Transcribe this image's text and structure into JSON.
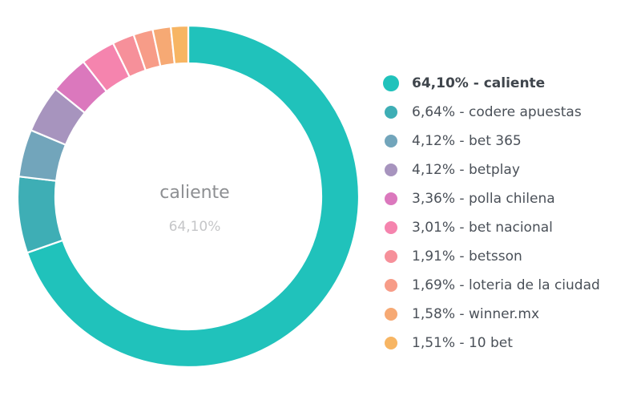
{
  "chart_data": {
    "type": "pie",
    "variant": "donut",
    "title": "",
    "legend_position": "right",
    "center_label": {
      "name": "caliente",
      "value": "64,10%"
    },
    "slices": [
      {
        "label": "caliente",
        "value": 64.1,
        "display": "64,10%",
        "color": "#20c2bb"
      },
      {
        "label": "codere apuestas",
        "value": 6.64,
        "display": "6,64%",
        "color": "#3eaeb5"
      },
      {
        "label": "bet 365",
        "value": 4.12,
        "display": "4,12%",
        "color": "#72a5bb"
      },
      {
        "label": "betplay",
        "value": 4.12,
        "display": "4,12%",
        "color": "#a794be"
      },
      {
        "label": "polla chilena",
        "value": 3.36,
        "display": "3,36%",
        "color": "#db78bd"
      },
      {
        "label": "bet nacional",
        "value": 3.01,
        "display": "3,01%",
        "color": "#f584ae"
      },
      {
        "label": "betsson",
        "value": 1.91,
        "display": "1,91%",
        "color": "#f6909a"
      },
      {
        "label": "loteria de la ciudad",
        "value": 1.69,
        "display": "1,69%",
        "color": "#f79c88"
      },
      {
        "label": "winner.mx",
        "value": 1.58,
        "display": "1,58%",
        "color": "#f6a974"
      },
      {
        "label": "10 bet",
        "value": 1.51,
        "display": "1,51%",
        "color": "#f7b563"
      }
    ],
    "highlighted_index": 0,
    "separator": " - "
  }
}
